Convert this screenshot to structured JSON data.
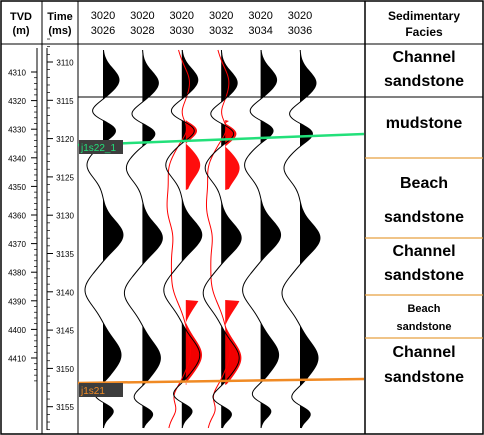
{
  "tvd_header": [
    "TVD",
    "(m)"
  ],
  "time_header": [
    "Time",
    "(ms)"
  ],
  "facies_header": [
    "Sedimentary",
    "Facies"
  ],
  "tvd_ticks": [
    "4310",
    "4320",
    "4330",
    "4340",
    "4350",
    "4360",
    "4370",
    "4380",
    "4390",
    "4400",
    "4410"
  ],
  "time_ticks": [
    "3110",
    "3115",
    "3120",
    "3125",
    "3130",
    "3135",
    "3140",
    "3145",
    "3150",
    "3155"
  ],
  "traces": [
    {
      "inline": "3020",
      "crossline": "3026",
      "highlighted": false
    },
    {
      "inline": "3020",
      "crossline": "3028",
      "highlighted": false
    },
    {
      "inline": "3020",
      "crossline": "3030",
      "highlighted": true
    },
    {
      "inline": "3020",
      "crossline": "3032",
      "highlighted": true
    },
    {
      "inline": "3020",
      "crossline": "3034",
      "highlighted": false
    },
    {
      "inline": "3020",
      "crossline": "3036",
      "highlighted": false
    }
  ],
  "horizons": [
    {
      "name": "j1s22_1",
      "color": "#22e07a"
    },
    {
      "name": "j1s21",
      "color": "#f08a24"
    }
  ],
  "facies": [
    {
      "lines": [
        "Channel",
        "sandstone"
      ],
      "size": "large"
    },
    {
      "lines": [
        "mudstone"
      ],
      "size": "large"
    },
    {
      "lines": [
        "Beach",
        "sandstone"
      ],
      "size": "large"
    },
    {
      "lines": [
        "Channel",
        "sandstone"
      ],
      "size": "large"
    },
    {
      "lines": [
        "Beach",
        "sandstone"
      ],
      "size": "small"
    },
    {
      "lines": [
        "Channel",
        "sandstone"
      ],
      "size": "large"
    }
  ],
  "colors": {
    "positive_fill": "#000000",
    "highlight_fill": "#ff0000",
    "frame": "#000000",
    "facies_divider": "#e8a040"
  }
}
